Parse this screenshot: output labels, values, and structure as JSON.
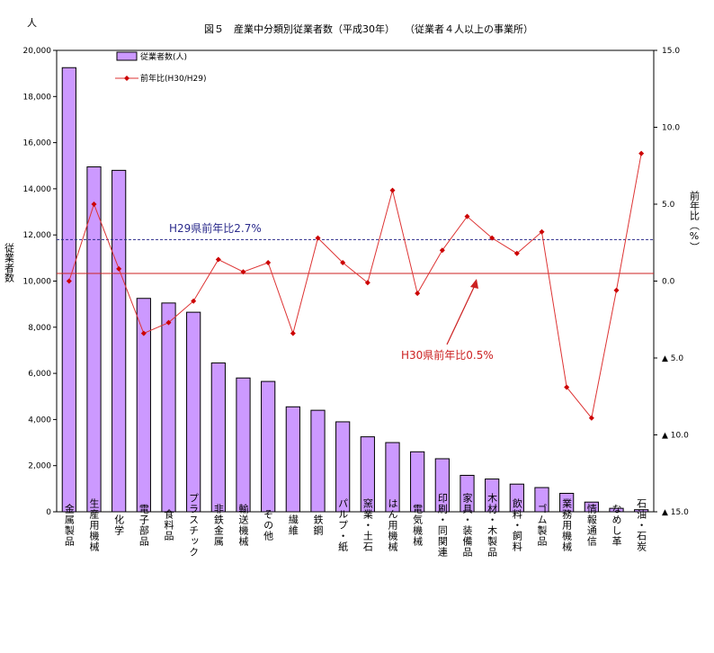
{
  "chart_data": {
    "type": "bar",
    "title": "図５　産業中分類別従業者数（平成30年）　　（従業者４人以上の事業所）",
    "y_unit": "人",
    "ylabel_left": "従業者数",
    "ylabel_right": "前年比（%）",
    "ylim": [
      0,
      20000
    ],
    "y2lim": [
      -15,
      15
    ],
    "y_ticks": [
      "0",
      "2,000",
      "4,000",
      "6,000",
      "8,000",
      "10,000",
      "12,000",
      "14,000",
      "16,000",
      "18,000",
      "20,000"
    ],
    "y2_ticks": [
      "15.0",
      "10.0",
      "5.0",
      "0.0",
      "▲ 5.0",
      "▲ 10.0",
      "▲ 15.0"
    ],
    "categories": [
      "金属製品",
      "生産用機械",
      "化学",
      "電子部品",
      "食料品",
      "プラスチック",
      "非鉄金属",
      "輸送機械",
      "その他",
      "繊維",
      "鉄鋼",
      "パルプ・紙",
      "窯業・土石",
      "はん用機械",
      "電気機械",
      "印刷・同関連",
      "家具・装備品",
      "木材・木製品",
      "飲料・飼料",
      "ゴム製品",
      "業務用機械",
      "情報通信",
      "なめし革",
      "石油・石炭"
    ],
    "series": [
      {
        "name": "従業者数(人)",
        "type": "bar",
        "axis": "left",
        "values": [
          19250,
          14950,
          14800,
          9250,
          9050,
          8650,
          6450,
          5800,
          5650,
          4550,
          4400,
          3900,
          3250,
          3000,
          2600,
          2300,
          1580,
          1420,
          1200,
          1050,
          800,
          420,
          150,
          90
        ]
      },
      {
        "name": "前年比(H30/H29)",
        "type": "line",
        "axis": "right",
        "values": [
          0.0,
          5.0,
          0.8,
          -3.4,
          -2.7,
          -1.3,
          1.4,
          0.6,
          1.2,
          -3.4,
          2.8,
          1.2,
          -0.1,
          5.9,
          -0.8,
          2.0,
          4.2,
          2.8,
          1.8,
          3.2,
          -6.9,
          -8.9,
          -0.6,
          8.3
        ]
      }
    ],
    "reference_lines": [
      {
        "label": "H29県前年比2.7%",
        "value": 2.7,
        "axis": "right",
        "style": "dashed",
        "color": "#2b2b8c"
      },
      {
        "label": "H30県前年比0.5%",
        "value": 0.5,
        "axis": "right",
        "style": "solid",
        "color": "#cc2222"
      }
    ],
    "colors": {
      "bar_fill": "#cc99ff",
      "bar_stroke": "#000000",
      "line": "#dd3333",
      "marker": "#cc0000"
    }
  }
}
